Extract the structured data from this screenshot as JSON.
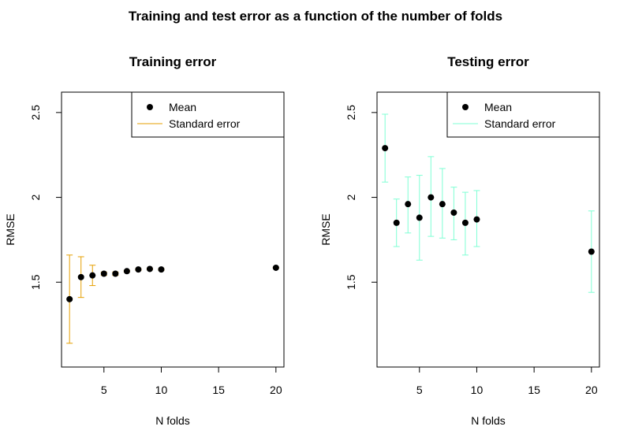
{
  "figure_title": "Training and test error as a function of the number of folds",
  "chart_data": [
    {
      "type": "scatter",
      "title": "Training error",
      "xlabel": "N folds",
      "ylabel": "RMSE",
      "xlim": [
        1.3,
        20.7
      ],
      "ylim": [
        1.0,
        2.62
      ],
      "xticks": [
        5,
        10,
        15,
        20
      ],
      "yticks": [
        1.5,
        2.0,
        2.5
      ],
      "grid": false,
      "legend_position": "top-right",
      "legend": [
        {
          "label": "Mean",
          "kind": "point",
          "color": "#000000"
        },
        {
          "label": "Standard error",
          "kind": "line",
          "color": "#E69F00"
        }
      ],
      "errorbar_color": "#E69F00",
      "points": [
        {
          "x": 2,
          "mean": 1.4,
          "lower": 1.14,
          "upper": 1.66
        },
        {
          "x": 3,
          "mean": 1.53,
          "lower": 1.41,
          "upper": 1.65
        },
        {
          "x": 4,
          "mean": 1.54,
          "lower": 1.48,
          "upper": 1.6
        },
        {
          "x": 5,
          "mean": 1.55,
          "lower": 1.54,
          "upper": 1.56
        },
        {
          "x": 6,
          "mean": 1.55,
          "lower": 1.54,
          "upper": 1.56
        },
        {
          "x": 7,
          "mean": 1.565,
          "lower": 1.56,
          "upper": 1.57
        },
        {
          "x": 8,
          "mean": 1.575,
          "lower": 1.57,
          "upper": 1.58
        },
        {
          "x": 9,
          "mean": 1.578,
          "lower": 1.573,
          "upper": 1.583
        },
        {
          "x": 10,
          "mean": 1.575,
          "lower": 1.57,
          "upper": 1.58
        },
        {
          "x": 20,
          "mean": 1.585,
          "lower": 1.583,
          "upper": 1.587
        }
      ]
    },
    {
      "type": "scatter",
      "title": "Testing error",
      "xlabel": "N folds",
      "ylabel": "RMSE",
      "xlim": [
        1.3,
        20.7
      ],
      "ylim": [
        1.0,
        2.62
      ],
      "xticks": [
        5,
        10,
        15,
        20
      ],
      "yticks": [
        1.5,
        2.0,
        2.5
      ],
      "grid": false,
      "legend_position": "top-right",
      "legend": [
        {
          "label": "Mean",
          "kind": "point",
          "color": "#000000"
        },
        {
          "label": "Standard error",
          "kind": "line",
          "color": "#7FFFD4"
        }
      ],
      "errorbar_color": "#7FFFD4",
      "points": [
        {
          "x": 2,
          "mean": 2.29,
          "lower": 2.09,
          "upper": 2.49
        },
        {
          "x": 3,
          "mean": 1.85,
          "lower": 1.71,
          "upper": 1.99
        },
        {
          "x": 4,
          "mean": 1.96,
          "lower": 1.79,
          "upper": 2.12
        },
        {
          "x": 5,
          "mean": 1.88,
          "lower": 1.63,
          "upper": 2.13
        },
        {
          "x": 6,
          "mean": 2.0,
          "lower": 1.77,
          "upper": 2.24
        },
        {
          "x": 7,
          "mean": 1.96,
          "lower": 1.76,
          "upper": 2.17
        },
        {
          "x": 8,
          "mean": 1.91,
          "lower": 1.75,
          "upper": 2.06
        },
        {
          "x": 9,
          "mean": 1.85,
          "lower": 1.66,
          "upper": 2.03
        },
        {
          "x": 10,
          "mean": 1.87,
          "lower": 1.71,
          "upper": 2.04
        },
        {
          "x": 20,
          "mean": 1.68,
          "lower": 1.44,
          "upper": 1.92
        }
      ]
    }
  ]
}
